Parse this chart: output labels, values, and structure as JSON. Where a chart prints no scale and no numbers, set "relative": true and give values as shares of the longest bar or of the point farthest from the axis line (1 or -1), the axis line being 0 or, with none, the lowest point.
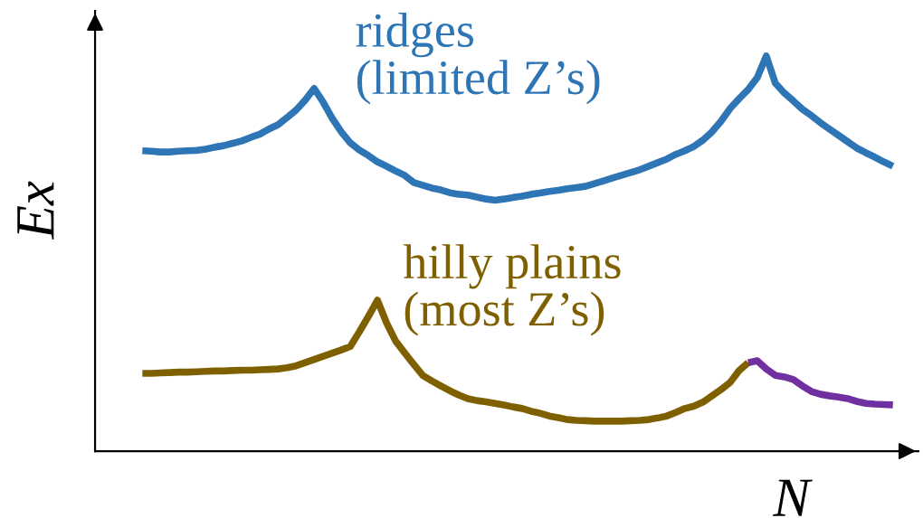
{
  "chart_data": {
    "type": "line",
    "relative": true,
    "xlabel": "N",
    "ylabel": "Ex",
    "tick_labels": false,
    "categories": [
      null,
      null,
      null,
      null,
      null,
      null,
      null,
      null,
      null,
      null,
      null,
      null,
      null,
      null,
      null,
      null,
      null,
      null,
      null,
      null,
      null,
      null,
      null,
      null,
      null,
      null,
      null,
      null,
      null,
      null,
      null,
      null,
      null,
      null,
      null,
      null,
      null,
      null,
      null,
      null,
      null,
      null,
      null,
      null,
      null,
      null,
      null,
      null,
      null,
      null,
      null,
      null,
      null,
      null,
      null,
      null,
      null,
      null,
      null,
      null,
      null,
      null,
      null,
      null,
      null,
      null,
      null,
      null,
      null,
      null,
      null,
      null,
      null,
      null,
      null,
      null,
      null,
      null,
      null,
      null,
      null,
      null,
      null,
      null
    ],
    "series": [
      {
        "name": "ridges\n(limited Z’s)",
        "color": "#2e75b6",
        "values": [
          0.76,
          0.759,
          0.757,
          0.757,
          0.759,
          0.76,
          0.761,
          0.764,
          0.769,
          0.773,
          0.779,
          0.785,
          0.794,
          0.802,
          0.815,
          0.826,
          0.844,
          0.863,
          0.888,
          0.918,
          0.883,
          0.842,
          0.808,
          0.78,
          0.762,
          0.748,
          0.732,
          0.721,
          0.709,
          0.698,
          0.68,
          0.673,
          0.666,
          0.661,
          0.654,
          0.65,
          0.648,
          0.643,
          0.638,
          0.635,
          0.638,
          0.642,
          0.645,
          0.65,
          0.653,
          0.657,
          0.66,
          0.664,
          0.667,
          0.67,
          0.677,
          0.684,
          0.691,
          0.698,
          0.705,
          0.712,
          0.721,
          0.73,
          0.739,
          0.751,
          0.76,
          0.771,
          0.787,
          0.808,
          0.835,
          0.867,
          0.892,
          0.915,
          0.945,
          1,
          0.931,
          0.906,
          0.886,
          0.865,
          0.849,
          0.831,
          0.815,
          0.799,
          0.783,
          0.767,
          0.755,
          0.744,
          0.732,
          0.721
        ]
      },
      {
        "name": "hilly plains\n(most Z’s)",
        "color": "#7f6000",
        "values": [
          0.197,
          0.197,
          0.198,
          0.199,
          0.2,
          0.2,
          0.201,
          0.202,
          0.203,
          0.203,
          0.204,
          0.205,
          0.205,
          0.206,
          0.207,
          0.208,
          0.211,
          0.216,
          0.224,
          0.232,
          0.24,
          0.248,
          0.256,
          0.265,
          0.302,
          0.341,
          0.382,
          0.325,
          0.279,
          0.249,
          0.22,
          0.192,
          0.178,
          0.165,
          0.153,
          0.142,
          0.133,
          0.128,
          0.125,
          0.121,
          0.117,
          0.112,
          0.108,
          0.101,
          0.096,
          0.089,
          0.085,
          0.08,
          0.078,
          0.077,
          0.076,
          0.076,
          0.076,
          0.076,
          0.077,
          0.078,
          0.08,
          0.084,
          0.089,
          0.098,
          0.108,
          0.114,
          0.124,
          0.14,
          0.156,
          0.174,
          0.204,
          0.224,
          null,
          null,
          null,
          null,
          null,
          null,
          null,
          null,
          null,
          null,
          null,
          null,
          null,
          null,
          null,
          null
        ]
      },
      {
        "color": "#7030a0",
        "values": [
          null,
          null,
          null,
          null,
          null,
          null,
          null,
          null,
          null,
          null,
          null,
          null,
          null,
          null,
          null,
          null,
          null,
          null,
          null,
          null,
          null,
          null,
          null,
          null,
          null,
          null,
          null,
          null,
          null,
          null,
          null,
          null,
          null,
          null,
          null,
          null,
          null,
          null,
          null,
          null,
          null,
          null,
          null,
          null,
          null,
          null,
          null,
          null,
          null,
          null,
          null,
          null,
          null,
          null,
          null,
          null,
          null,
          null,
          null,
          null,
          null,
          null,
          null,
          null,
          null,
          null,
          null,
          0.224,
          0.229,
          0.208,
          0.192,
          0.188,
          0.181,
          0.165,
          0.151,
          0.144,
          0.14,
          0.137,
          0.133,
          0.126,
          0.121,
          0.119,
          0.118,
          0.117
        ]
      }
    ]
  }
}
